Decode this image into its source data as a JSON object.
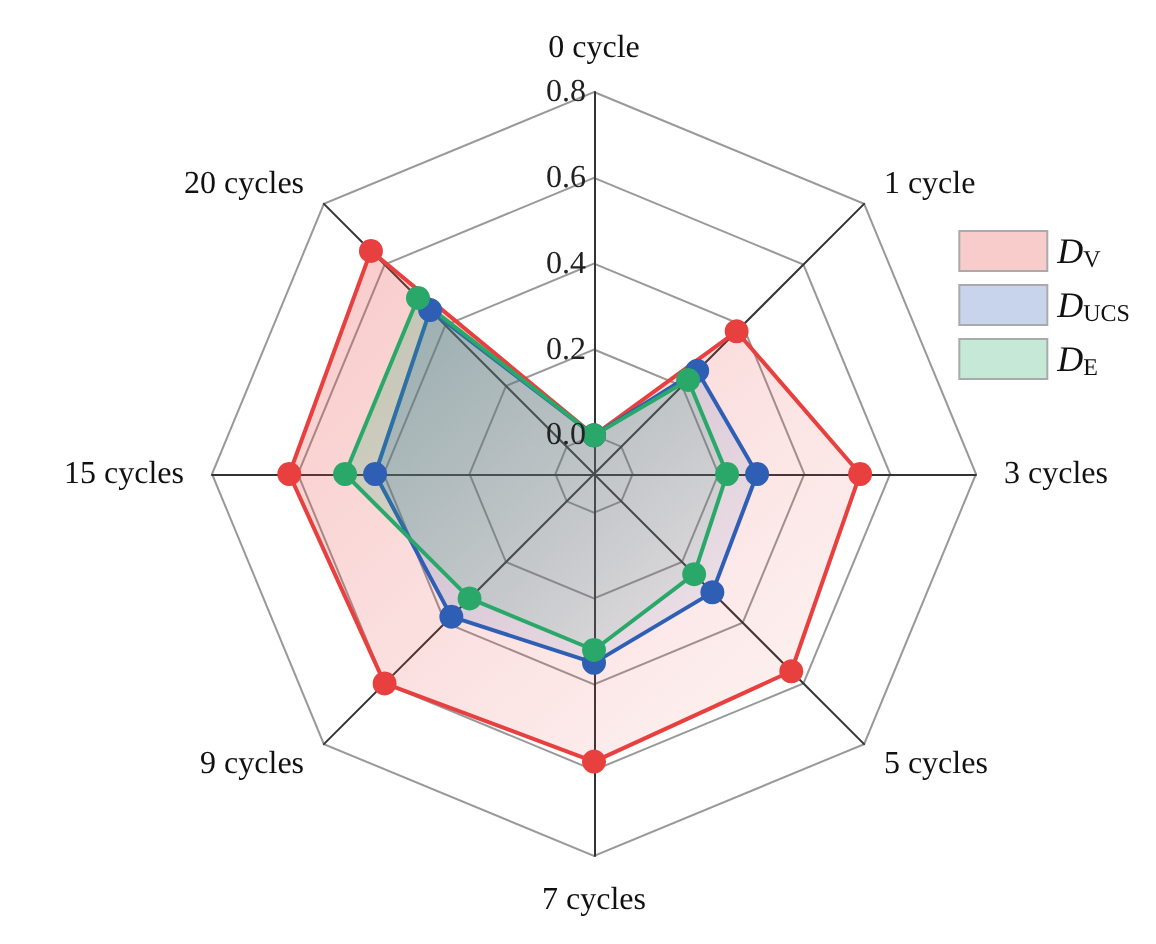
{
  "chart_data": {
    "type": "radar",
    "categories": [
      "0 cycle",
      "1 cycle",
      "3 cycles",
      "5 cycles",
      "7 cycles",
      "9 cycles",
      "15 cycles",
      "20 cycles"
    ],
    "ylim": [
      -0.09,
      0.8
    ],
    "yticks": [
      {
        "value": 0,
        "label": "0.0"
      },
      0.2,
      0.4,
      0.6,
      0.8
    ],
    "series": [
      {
        "name": "D$_{V}$",
        "color": "#e8403f",
        "values": [
          0.0,
          0.38,
          0.53,
          0.56,
          0.58,
          0.6,
          0.62,
          0.645
        ]
      },
      {
        "name": "D$_{UCS}$",
        "color": "#2e5fb5",
        "values": [
          0.0,
          0.25,
          0.29,
          0.3,
          0.35,
          0.38,
          0.42,
          0.45
        ]
      },
      {
        "name": "D$_{E}$",
        "color": "#2aa86a",
        "values": [
          0.0,
          0.22,
          0.22,
          0.24,
          0.32,
          0.32,
          0.49,
          0.49
        ]
      }
    ],
    "marker": "circle",
    "legend": "right"
  }
}
